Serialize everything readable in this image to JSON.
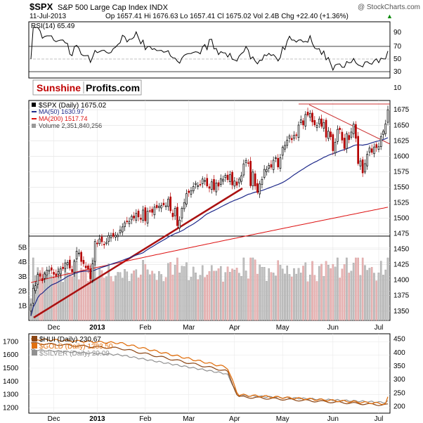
{
  "header": {
    "symbol": "$SPX",
    "name": "S&P 500 Large Cap Index INDX",
    "watermark": "@ StockCharts.com",
    "date": "11-Jul-2013",
    "ohlc": "Op 1657.41  Hi 1676.63  Lo 1657.41  Cl 1675.02  Vol 2.4B  Chg +22.40 (+1.36%)",
    "ohlc_arrow": "▲"
  },
  "logo": {
    "part1": "Sunshine",
    "part2": "Profits.com"
  },
  "colors": {
    "price_up": "#000000",
    "price_down": "#b40000",
    "ma50": "#1f2a8a",
    "ma200": "#dd1111",
    "volume": "#c0c0c0",
    "volume_down": "#e8b4b4",
    "hui": "#8b4513",
    "gold": "#e07010",
    "silver": "#909090",
    "trend": "#aa1111"
  },
  "rsi_panel": {
    "label": "RSI(14) 65.49",
    "ticks": [
      "90",
      "70",
      "50",
      "30",
      "10"
    ]
  },
  "price_panel": {
    "legend": [
      {
        "key": "spx",
        "text": "$SPX (Daily) 1675.02"
      },
      {
        "key": "ma50",
        "text": "MA(50) 1630.97"
      },
      {
        "key": "ma200",
        "text": "MA(200) 1517.74"
      },
      {
        "key": "vol",
        "text": "Volume 2,351,840,256"
      }
    ],
    "y_ticks": [
      "1675",
      "1650",
      "1625",
      "1600",
      "1575",
      "1550",
      "1525",
      "1500",
      "1475",
      "1450",
      "1425",
      "1400",
      "1375",
      "1350"
    ],
    "vol_ticks": [
      "5B",
      "4B",
      "3B",
      "2B",
      "1B"
    ],
    "x_ticks": [
      "Dec",
      "2013",
      "Feb",
      "Mar",
      "Apr",
      "May",
      "Jun",
      "Jul"
    ]
  },
  "metals_panel": {
    "legend": [
      {
        "key": "hui",
        "text": "$HUI (Daily) 230.67"
      },
      {
        "key": "gold",
        "text": "$GOLD (Daily) 1283.50"
      },
      {
        "key": "silver",
        "text": "$SILVER (Daily) 20.09"
      }
    ],
    "left_ticks": [
      "1700",
      "1600",
      "1500",
      "1400",
      "1300",
      "1200"
    ],
    "right_ticks": [
      "450",
      "400",
      "350",
      "300",
      "250",
      "200"
    ],
    "x_ticks": [
      "Dec",
      "2013",
      "Feb",
      "Mar",
      "Apr",
      "May",
      "Jun",
      "Jul"
    ]
  },
  "chart_data": {
    "type": "line",
    "title": "$SPX S&P 500 Large Cap Index INDX",
    "x_range": [
      "2012-11-16",
      "2013-07-11"
    ],
    "spx_daily_close": [
      1359.88,
      1386.89,
      1391.03,
      1409.15,
      1406.29,
      1398.94,
      1409.93,
      1415.95,
      1416.18,
      1416.18,
      1409.46,
      1407.05,
      1413.94,
      1418.07,
      1418.55,
      1427.84,
      1428.48,
      1419.45,
      1413.58,
      1430.36,
      1446.79,
      1443.69,
      1430.15,
      1426.66,
      1419.83,
      1418.1,
      1402.43,
      1426.19,
      1462.42,
      1459.37,
      1466.47,
      1461.89,
      1457.15,
      1461.02,
      1472.12,
      1472.05,
      1470.68,
      1472.34,
      1472.63,
      1480.94,
      1485.98,
      1492.56,
      1494.81,
      1494.82,
      1502.96,
      1500.18,
      1507.84,
      1501.96,
      1498.11,
      1513.17,
      1495.71,
      1511.29,
      1512.12,
      1509.39,
      1517.93,
      1517.01,
      1519.43,
      1520.33,
      1521.38,
      1519.79,
      1530.94,
      1511.95,
      1502.42,
      1515.99,
      1487.85,
      1496.94,
      1515.99,
      1525.2,
      1539.79,
      1541.46,
      1544.26,
      1551.18,
      1556.22,
      1552.48,
      1554.52,
      1563.23,
      1560.7,
      1552.1,
      1548.34,
      1558.71,
      1545.8,
      1556.89,
      1551.69,
      1563.77,
      1562.85,
      1569.19,
      1562.17,
      1570.25,
      1553.69,
      1559.98,
      1553.28,
      1563.07,
      1568.61,
      1587.73,
      1593.37,
      1588.85,
      1552.36,
      1574.57,
      1552.01,
      1541.61,
      1555.25,
      1562.5,
      1578.78,
      1578.79,
      1585.16,
      1582.24,
      1593.61,
      1597.57,
      1582.7,
      1597.59,
      1614.42,
      1617.5,
      1625.96,
      1632.69,
      1626.67,
      1633.7,
      1633.77,
      1650.34,
      1658.78,
      1650.47,
      1667.47,
      1666.29,
      1669.16,
      1655.35,
      1650.51,
      1649.6,
      1660.06,
      1648.36,
      1654.41,
      1630.74,
      1640.42,
      1631.38,
      1608.9,
      1622.56,
      1643.38,
      1642.81,
      1626.13,
      1612.52,
      1636.36,
      1626.73,
      1639.04,
      1651.81,
      1628.93,
      1588.19,
      1592.43,
      1573.09,
      1588.03,
      1603.26,
      1613.2,
      1606.28,
      1614.96,
      1614.08,
      1615.41,
      1631.89,
      1640.46,
      1652.32,
      1675.02
    ],
    "ma50_end": 1630.97,
    "ma200_end": 1517.74,
    "rsi14_end": 65.49,
    "volume_end": 2351840256,
    "hui_end": 230.67,
    "gold_end": 1283.5,
    "silver_end": 20.09,
    "price_ylim": [
      1335,
      1690
    ],
    "metals_left_ylim": [
      1160,
      1760
    ],
    "metals_right_ylim": [
      175,
      470
    ]
  }
}
